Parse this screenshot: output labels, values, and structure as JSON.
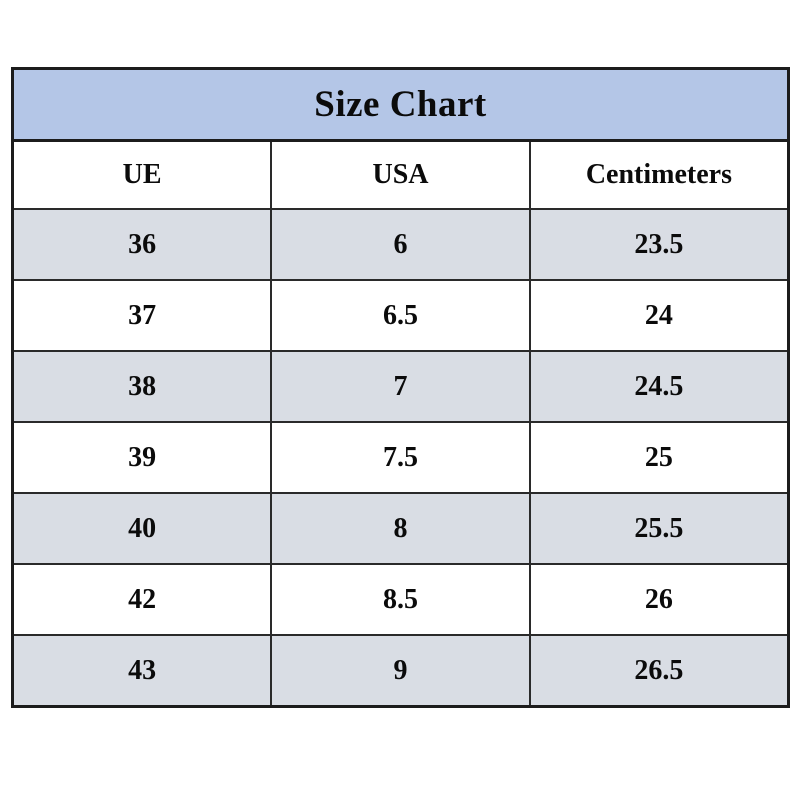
{
  "table": {
    "title": "Size Chart",
    "columns": [
      "UE",
      "USA",
      "Centimeters"
    ],
    "rows": [
      [
        "36",
        "6",
        "23.5"
      ],
      [
        "37",
        "6.5",
        "24"
      ],
      [
        "38",
        "7",
        "24.5"
      ],
      [
        "39",
        "7.5",
        "25"
      ],
      [
        "40",
        "8",
        "25.5"
      ],
      [
        "42",
        "8.5",
        "26"
      ],
      [
        "43",
        "9",
        "26.5"
      ]
    ]
  },
  "colors": {
    "title_background": "#b4c6e7",
    "shaded_row_background": "#d9dde4",
    "border": "#1c1c1c",
    "text": "#0b0b0b",
    "page_background": "#ffffff"
  },
  "chart_data": {
    "type": "table",
    "title": "Size Chart",
    "columns": [
      "UE",
      "USA",
      "Centimeters"
    ],
    "rows": [
      {
        "UE": 36,
        "USA": 6,
        "Centimeters": 23.5
      },
      {
        "UE": 37,
        "USA": 6.5,
        "Centimeters": 24
      },
      {
        "UE": 38,
        "USA": 7,
        "Centimeters": 24.5
      },
      {
        "UE": 39,
        "USA": 7.5,
        "Centimeters": 25
      },
      {
        "UE": 40,
        "USA": 8,
        "Centimeters": 25.5
      },
      {
        "UE": 42,
        "USA": 8.5,
        "Centimeters": 26
      },
      {
        "UE": 43,
        "USA": 9,
        "Centimeters": 26.5
      }
    ],
    "layout_hints": {
      "striped": true,
      "stripe_pattern": "shaded,white alternating starting shaded",
      "title_band": true,
      "grid": "full borders"
    }
  }
}
